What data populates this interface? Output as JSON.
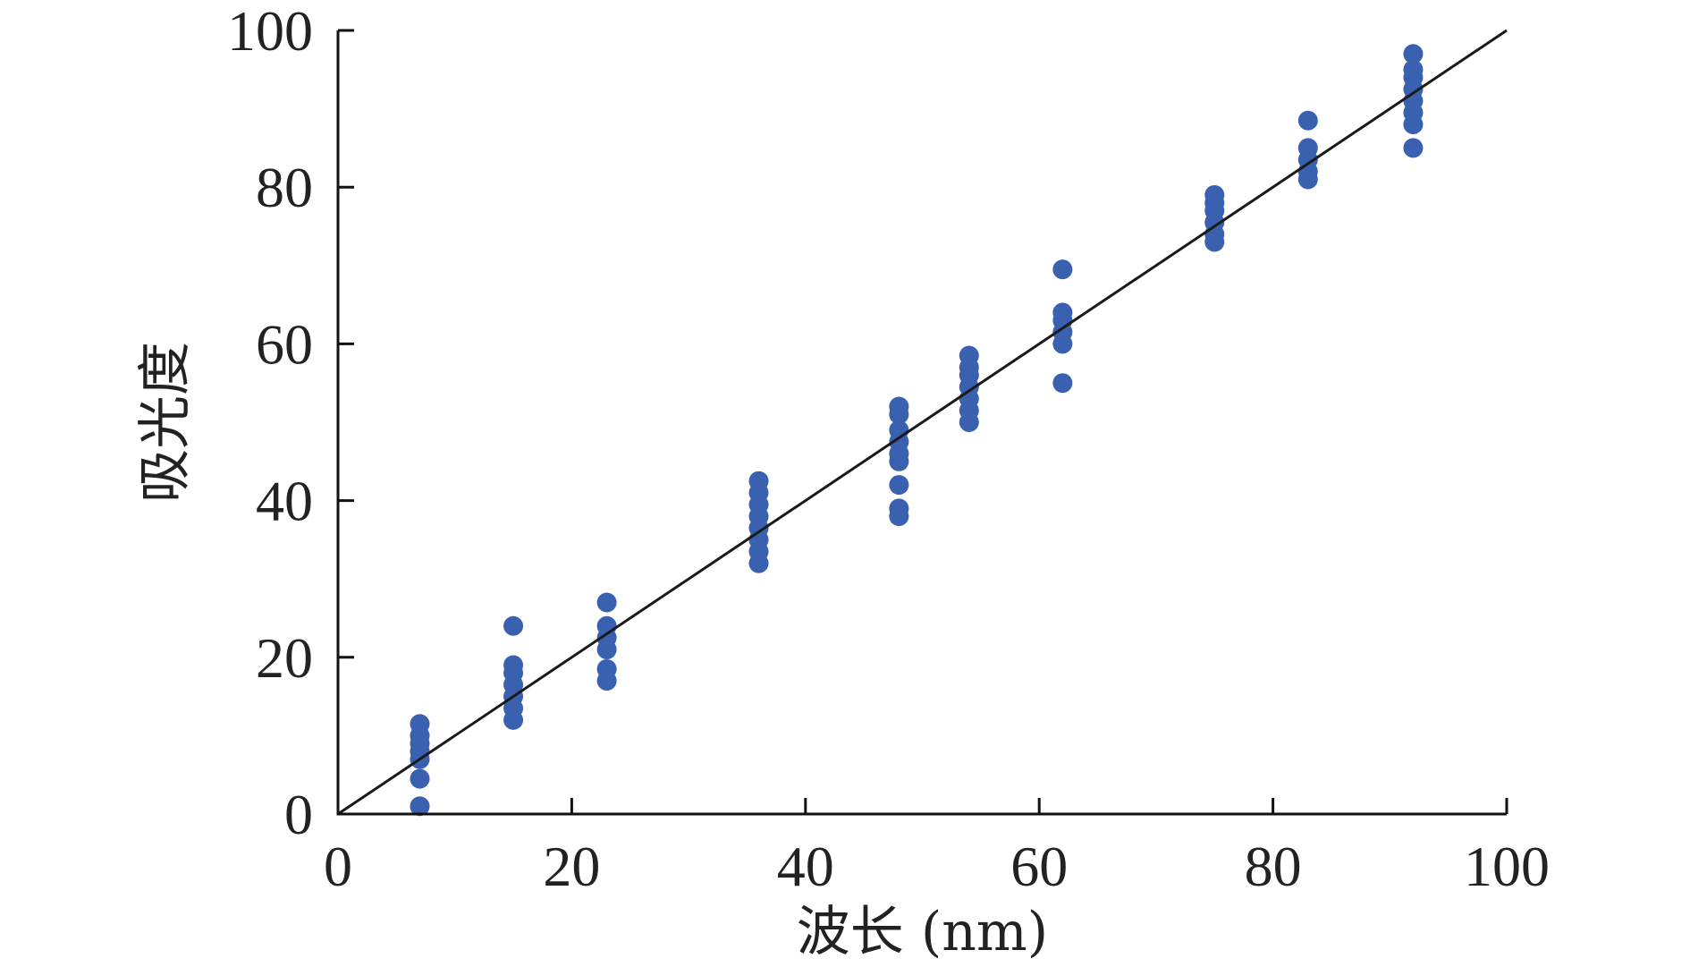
{
  "chart_data": {
    "type": "scatter",
    "title": "",
    "xlabel": "波长 (nm)",
    "ylabel": "吸光度",
    "xlim": [
      0,
      100
    ],
    "ylim": [
      0,
      100
    ],
    "xticks": [
      0,
      20,
      40,
      60,
      80,
      100
    ],
    "yticks": [
      0,
      20,
      40,
      60,
      80,
      100
    ],
    "grid": false,
    "point_color": "#3a60b0",
    "line_color": "#1a1a1a",
    "fit_line": {
      "from": [
        0,
        0
      ],
      "to": [
        100,
        100
      ]
    },
    "series": [
      {
        "points": [
          [
            7,
            1
          ],
          [
            7,
            4.5
          ],
          [
            7,
            7
          ],
          [
            7,
            8
          ],
          [
            7,
            9
          ],
          [
            7,
            10
          ],
          [
            7,
            11.5
          ],
          [
            15,
            12
          ],
          [
            15,
            13.5
          ],
          [
            15,
            15
          ],
          [
            15,
            16.5
          ],
          [
            15,
            18
          ],
          [
            15,
            19
          ],
          [
            15,
            24
          ],
          [
            23,
            17
          ],
          [
            23,
            18.5
          ],
          [
            23,
            21
          ],
          [
            23,
            22.5
          ],
          [
            23,
            24
          ],
          [
            23,
            27
          ],
          [
            36,
            32
          ],
          [
            36,
            33.5
          ],
          [
            36,
            35
          ],
          [
            36,
            36.5
          ],
          [
            36,
            38
          ],
          [
            36,
            39.5
          ],
          [
            36,
            41
          ],
          [
            36,
            42.5
          ],
          [
            48,
            38
          ],
          [
            48,
            39
          ],
          [
            48,
            42
          ],
          [
            48,
            45
          ],
          [
            48,
            46
          ],
          [
            48,
            47.5
          ],
          [
            48,
            49
          ],
          [
            48,
            51
          ],
          [
            48,
            52
          ],
          [
            54,
            50
          ],
          [
            54,
            51.5
          ],
          [
            54,
            53
          ],
          [
            54,
            54.5
          ],
          [
            54,
            56
          ],
          [
            54,
            57
          ],
          [
            54,
            58.5
          ],
          [
            62,
            55
          ],
          [
            62,
            60
          ],
          [
            62,
            61.5
          ],
          [
            62,
            63
          ],
          [
            62,
            64
          ],
          [
            62,
            69.5
          ],
          [
            75,
            73
          ],
          [
            75,
            74
          ],
          [
            75,
            75.5
          ],
          [
            75,
            77
          ],
          [
            75,
            78
          ],
          [
            75,
            79
          ],
          [
            83,
            81
          ],
          [
            83,
            82
          ],
          [
            83,
            83.5
          ],
          [
            83,
            85
          ],
          [
            83,
            88.5
          ],
          [
            92,
            85
          ],
          [
            92,
            88
          ],
          [
            92,
            89.5
          ],
          [
            92,
            91
          ],
          [
            92,
            92.5
          ],
          [
            92,
            94
          ],
          [
            92,
            95
          ],
          [
            92,
            97
          ]
        ]
      }
    ]
  }
}
